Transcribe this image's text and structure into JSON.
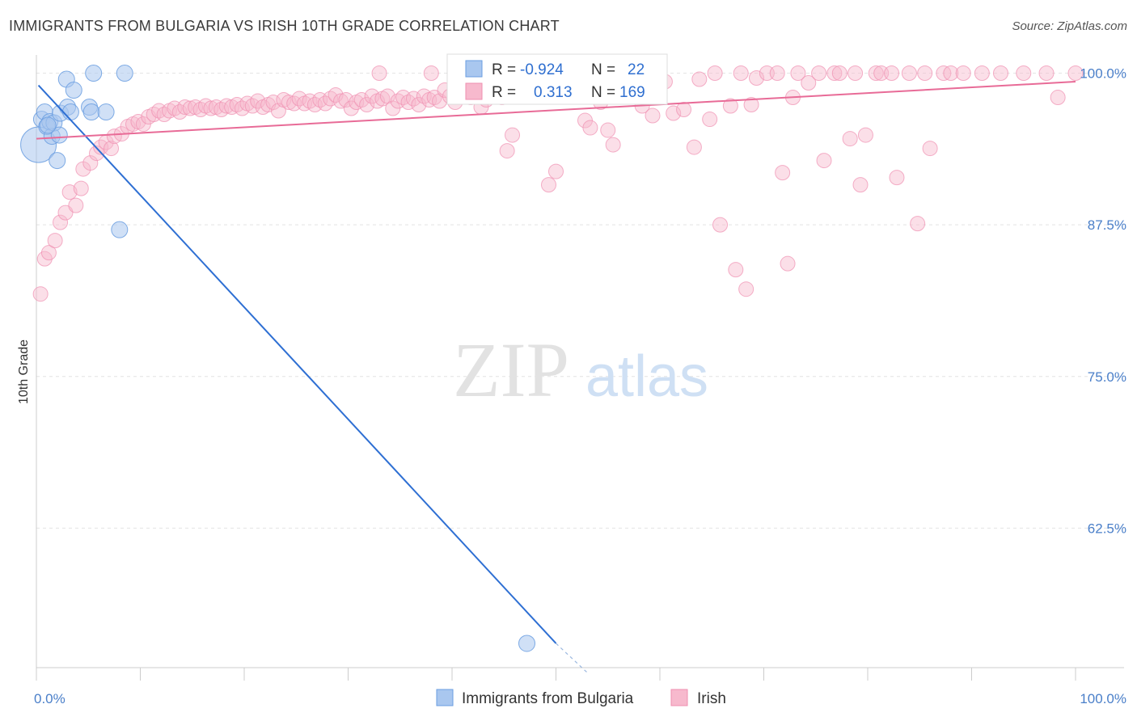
{
  "header": {
    "title": "IMMIGRANTS FROM BULGARIA VS IRISH 10TH GRADE CORRELATION CHART",
    "source": "Source: ZipAtlas.com"
  },
  "watermark": {
    "zip": "ZIP",
    "atlas": "atlas"
  },
  "chart_data": {
    "type": "scatter",
    "ylabel": "10th Grade",
    "x_tick_labels": [
      "0.0%",
      "100.0%"
    ],
    "y_tick_labels": [
      "100.0%",
      "87.5%",
      "75.0%",
      "62.5%"
    ],
    "y_ticks": [
      100.0,
      87.5,
      75.0,
      62.5
    ],
    "xlim": [
      0,
      100
    ],
    "ylim": [
      51,
      101.5
    ],
    "grid": true,
    "legend_top": {
      "blue": {
        "r_label": "R =",
        "r_value": "-0.924",
        "n_label": "N =",
        "n_value": "22"
      },
      "pink": {
        "r_label": "R =",
        "r_value": "0.313",
        "n_label": "N =",
        "n_value": "169"
      }
    },
    "legend_bottom": [
      "Immigrants from Bulgaria",
      "Irish"
    ],
    "colors": {
      "blue_fill": "#a9c7ef",
      "blue_stroke": "#6a9ee0",
      "blue_line": "#2e6fd3",
      "pink_fill": "#f7b9cd",
      "pink_stroke": "#ef8fb0",
      "pink_line": "#e86b97"
    },
    "series": [
      {
        "name": "Immigrants from Bulgaria",
        "trend": {
          "x0": 0.2,
          "y0": 99.0,
          "x1": 50,
          "y1": 53.0,
          "dash_to_x": 53,
          "dash_to_y": 50.6
        },
        "points": [
          [
            0.2,
            94.1,
            22
          ],
          [
            0.5,
            96.2,
            10
          ],
          [
            0.8,
            96.8,
            10
          ],
          [
            1.0,
            95.6,
            10
          ],
          [
            1.3,
            96.0,
            10
          ],
          [
            1.5,
            94.8,
            10
          ],
          [
            1.7,
            95.9,
            10
          ],
          [
            2.0,
            92.8,
            10
          ],
          [
            2.2,
            94.9,
            10
          ],
          [
            2.3,
            96.7,
            10
          ],
          [
            2.9,
            99.5,
            10
          ],
          [
            3.0,
            97.2,
            10
          ],
          [
            3.3,
            96.8,
            10
          ],
          [
            3.6,
            98.6,
            10
          ],
          [
            5.1,
            97.2,
            10
          ],
          [
            5.3,
            96.8,
            10
          ],
          [
            5.5,
            100.0,
            10
          ],
          [
            6.7,
            96.8,
            10
          ],
          [
            8.0,
            87.1,
            10
          ],
          [
            8.5,
            100.0,
            10
          ],
          [
            47.2,
            53.0,
            10
          ],
          [
            1.1,
            95.7,
            10
          ]
        ]
      },
      {
        "name": "Irish",
        "trend": {
          "x0": 0,
          "y0": 94.6,
          "x1": 100,
          "y1": 99.3
        },
        "points": [
          [
            0.4,
            81.8
          ],
          [
            0.8,
            84.7
          ],
          [
            1.2,
            85.2
          ],
          [
            1.8,
            86.2
          ],
          [
            2.3,
            87.7
          ],
          [
            2.8,
            88.5
          ],
          [
            3.2,
            90.2
          ],
          [
            3.8,
            89.1
          ],
          [
            4.3,
            90.5
          ],
          [
            4.5,
            92.1
          ],
          [
            5.2,
            92.6
          ],
          [
            5.8,
            93.4
          ],
          [
            6.2,
            93.9
          ],
          [
            6.7,
            94.3
          ],
          [
            7.2,
            93.8
          ],
          [
            7.5,
            94.8
          ],
          [
            8.2,
            95.0
          ],
          [
            8.8,
            95.6
          ],
          [
            9.3,
            95.8
          ],
          [
            9.8,
            96.0
          ],
          [
            10.3,
            95.8
          ],
          [
            10.8,
            96.4
          ],
          [
            11.3,
            96.6
          ],
          [
            11.8,
            96.9
          ],
          [
            12.3,
            96.6
          ],
          [
            12.8,
            96.9
          ],
          [
            13.3,
            97.1
          ],
          [
            13.8,
            96.8
          ],
          [
            14.3,
            97.2
          ],
          [
            14.8,
            97.1
          ],
          [
            15.3,
            97.2
          ],
          [
            15.8,
            97.0
          ],
          [
            16.3,
            97.3
          ],
          [
            16.8,
            97.1
          ],
          [
            17.3,
            97.2
          ],
          [
            17.8,
            97.0
          ],
          [
            18.3,
            97.3
          ],
          [
            18.8,
            97.2
          ],
          [
            19.3,
            97.4
          ],
          [
            19.8,
            97.1
          ],
          [
            20.3,
            97.5
          ],
          [
            20.8,
            97.3
          ],
          [
            21.3,
            97.7
          ],
          [
            21.8,
            97.2
          ],
          [
            22.3,
            97.4
          ],
          [
            22.8,
            97.6
          ],
          [
            23.3,
            96.9
          ],
          [
            23.8,
            97.8
          ],
          [
            24.3,
            97.6
          ],
          [
            24.8,
            97.5
          ],
          [
            25.3,
            97.9
          ],
          [
            25.8,
            97.5
          ],
          [
            26.3,
            97.7
          ],
          [
            26.8,
            97.4
          ],
          [
            27.3,
            97.8
          ],
          [
            27.8,
            97.5
          ],
          [
            28.3,
            97.9
          ],
          [
            28.8,
            98.2
          ],
          [
            29.3,
            97.7
          ],
          [
            29.8,
            97.8
          ],
          [
            30.3,
            97.1
          ],
          [
            30.8,
            97.6
          ],
          [
            31.3,
            97.8
          ],
          [
            31.8,
            97.4
          ],
          [
            32.3,
            98.1
          ],
          [
            32.8,
            97.7
          ],
          [
            33.3,
            97.9
          ],
          [
            33.8,
            98.1
          ],
          [
            34.3,
            97.1
          ],
          [
            34.8,
            97.7
          ],
          [
            35.3,
            98.0
          ],
          [
            35.8,
            97.6
          ],
          [
            36.3,
            97.9
          ],
          [
            36.8,
            97.4
          ],
          [
            37.3,
            98.1
          ],
          [
            37.8,
            97.8
          ],
          [
            38.3,
            98.0
          ],
          [
            38.8,
            97.7
          ],
          [
            39.3,
            98.6
          ],
          [
            39.8,
            98.1
          ],
          [
            40.3,
            97.6
          ],
          [
            40.8,
            98.2
          ],
          [
            41.3,
            98.3
          ],
          [
            41.8,
            98.0
          ],
          [
            42.3,
            98.4
          ],
          [
            42.8,
            97.2
          ],
          [
            43.3,
            97.8
          ],
          [
            43.8,
            98.2
          ],
          [
            44.3,
            98.3
          ],
          [
            44.8,
            98.0
          ],
          [
            45.3,
            93.6
          ],
          [
            45.8,
            94.9
          ],
          [
            46.3,
            98.3
          ],
          [
            46.8,
            98.5
          ],
          [
            47.3,
            98.2
          ],
          [
            47.8,
            98.7
          ],
          [
            48.3,
            98.4
          ],
          [
            48.8,
            98.5
          ],
          [
            49.3,
            90.8
          ],
          [
            50.0,
            91.9
          ],
          [
            50.8,
            98.6
          ],
          [
            51.3,
            99.2
          ],
          [
            51.8,
            98.8
          ],
          [
            52.3,
            98.4
          ],
          [
            52.8,
            96.1
          ],
          [
            53.3,
            95.5
          ],
          [
            54.3,
            97.6
          ],
          [
            55.0,
            95.3
          ],
          [
            55.5,
            94.1
          ],
          [
            56.3,
            99.0
          ],
          [
            57.0,
            99.5
          ],
          [
            58.3,
            97.3
          ],
          [
            59.3,
            96.5
          ],
          [
            60.5,
            99.3
          ],
          [
            61.3,
            96.7
          ],
          [
            62.3,
            97.0
          ],
          [
            63.3,
            93.9
          ],
          [
            63.8,
            99.5
          ],
          [
            64.8,
            96.2
          ],
          [
            65.3,
            100.0
          ],
          [
            65.8,
            87.5
          ],
          [
            66.8,
            97.3
          ],
          [
            67.3,
            83.8
          ],
          [
            67.8,
            100.0
          ],
          [
            68.3,
            82.2
          ],
          [
            68.8,
            97.4
          ],
          [
            69.3,
            99.6
          ],
          [
            70.3,
            100.0
          ],
          [
            71.3,
            100.0
          ],
          [
            71.8,
            91.8
          ],
          [
            72.3,
            84.3
          ],
          [
            72.8,
            98.0
          ],
          [
            73.3,
            100.0
          ],
          [
            74.3,
            99.2
          ],
          [
            75.3,
            100.0
          ],
          [
            75.8,
            92.8
          ],
          [
            76.8,
            100.0
          ],
          [
            77.3,
            100.0
          ],
          [
            78.3,
            94.6
          ],
          [
            78.8,
            100.0
          ],
          [
            79.3,
            90.8
          ],
          [
            79.8,
            94.9
          ],
          [
            80.8,
            100.0
          ],
          [
            81.3,
            100.0
          ],
          [
            82.3,
            100.0
          ],
          [
            82.8,
            91.4
          ],
          [
            84.0,
            100.0
          ],
          [
            84.8,
            87.6
          ],
          [
            85.5,
            100.0
          ],
          [
            86.0,
            93.8
          ],
          [
            87.3,
            100.0
          ],
          [
            88.0,
            100.0
          ],
          [
            89.2,
            100.0
          ],
          [
            91.0,
            100.0
          ],
          [
            92.8,
            100.0
          ],
          [
            95.0,
            100.0
          ],
          [
            97.2,
            100.0
          ],
          [
            98.3,
            98.0
          ],
          [
            100.0,
            100.0
          ],
          [
            33.0,
            100.0
          ],
          [
            38.0,
            100.0
          ],
          [
            43.0,
            100.0
          ],
          [
            48.5,
            100.0
          ],
          [
            54.0,
            100.0
          ]
        ]
      }
    ]
  }
}
